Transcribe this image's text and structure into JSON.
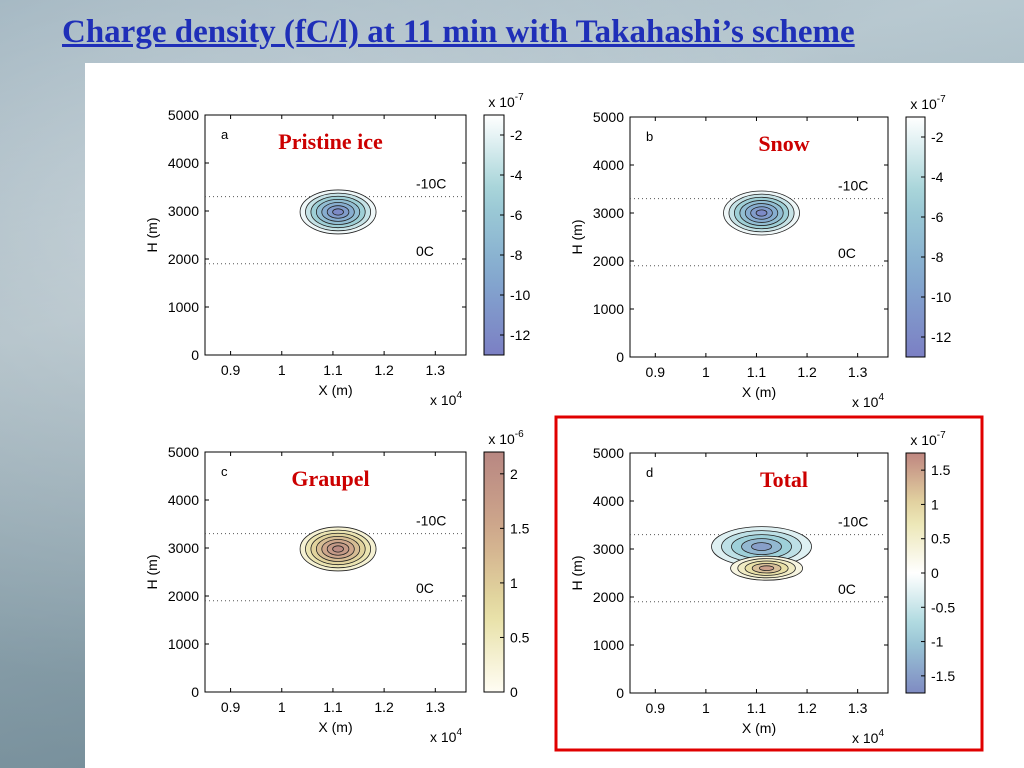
{
  "title": "Charge density (fC/l) at 11 min with Takahashi’s scheme",
  "colors": {
    "title": "#1f2fb8",
    "highlight_box": "#e00000",
    "panel_label": "#cc0000"
  },
  "chart_data": [
    {
      "type": "contour",
      "panel": "a",
      "label": "Pristine ice",
      "xlabel": "X (m)",
      "ylabel": "H (m)",
      "x_multiplier": "x 10^4",
      "xticks": [
        "0.9",
        "1",
        "1.1",
        "1.2",
        "1.3"
      ],
      "xlim": [
        0.85,
        1.36
      ],
      "yticks": [
        "0",
        "1000",
        "2000",
        "3000",
        "4000",
        "5000"
      ],
      "ylim": [
        0,
        5000
      ],
      "isotherms": [
        {
          "label": "-10C",
          "h": 3300
        },
        {
          "label": "0C",
          "h": 1900
        }
      ],
      "colorbar": {
        "multiplier": "x 10^-7",
        "ticks": [
          "-2",
          "-4",
          "-6",
          "-8",
          "-10",
          "-12"
        ],
        "range": [
          -13,
          -1
        ],
        "colormap": "blue"
      },
      "blob": {
        "cx": 1.11,
        "cy": 2980,
        "min": -12
      }
    },
    {
      "type": "contour",
      "panel": "b",
      "label": "Snow",
      "xlabel": "X (m)",
      "ylabel": "H (m)",
      "x_multiplier": "x 10^4",
      "xticks": [
        "0.9",
        "1",
        "1.1",
        "1.2",
        "1.3"
      ],
      "xlim": [
        0.85,
        1.36
      ],
      "yticks": [
        "0",
        "1000",
        "2000",
        "3000",
        "4000",
        "5000"
      ],
      "ylim": [
        0,
        5000
      ],
      "isotherms": [
        {
          "label": "-10C",
          "h": 3300
        },
        {
          "label": "0C",
          "h": 1900
        }
      ],
      "colorbar": {
        "multiplier": "x 10^-7",
        "ticks": [
          "-2",
          "-4",
          "-6",
          "-8",
          "-10",
          "-12"
        ],
        "range": [
          -13,
          -1
        ],
        "colormap": "blue"
      },
      "blob": {
        "cx": 1.11,
        "cy": 3000,
        "min": -12
      }
    },
    {
      "type": "contour",
      "panel": "c",
      "label": "Graupel",
      "xlabel": "X (m)",
      "ylabel": "H (m)",
      "x_multiplier": "x 10^4",
      "xticks": [
        "0.9",
        "1",
        "1.1",
        "1.2",
        "1.3"
      ],
      "xlim": [
        0.85,
        1.36
      ],
      "yticks": [
        "0",
        "1000",
        "2000",
        "3000",
        "4000",
        "5000"
      ],
      "ylim": [
        0,
        5000
      ],
      "isotherms": [
        {
          "label": "-10C",
          "h": 3300
        },
        {
          "label": "0C",
          "h": 1900
        }
      ],
      "colorbar": {
        "multiplier": "x 10^-6",
        "ticks": [
          "2",
          "1.5",
          "1",
          "0.5",
          "0"
        ],
        "range": [
          0,
          2.2
        ],
        "colormap": "warm"
      },
      "blob": {
        "cx": 1.11,
        "cy": 2980,
        "max": 2.1
      }
    },
    {
      "type": "contour",
      "panel": "d",
      "label": "Total",
      "xlabel": "X (m)",
      "ylabel": "H (m)",
      "x_multiplier": "x 10^4",
      "xticks": [
        "0.9",
        "1",
        "1.1",
        "1.2",
        "1.3"
      ],
      "xlim": [
        0.85,
        1.36
      ],
      "yticks": [
        "0",
        "1000",
        "2000",
        "3000",
        "4000",
        "5000"
      ],
      "ylim": [
        0,
        5000
      ],
      "isotherms": [
        {
          "label": "-10C",
          "h": 3300
        },
        {
          "label": "0C",
          "h": 1900
        }
      ],
      "colorbar": {
        "multiplier": "x 10^-7",
        "ticks": [
          "1.5",
          "1",
          "0.5",
          "0",
          "-0.5",
          "-1",
          "-1.5"
        ],
        "range": [
          -1.75,
          1.75
        ],
        "colormap": "diverging"
      },
      "negative_blob": {
        "cx": 1.11,
        "cy": 3050,
        "min": -1.5
      },
      "positive_blob": {
        "cx": 1.12,
        "cy": 2600,
        "max": 1.5
      },
      "highlighted": true
    }
  ]
}
